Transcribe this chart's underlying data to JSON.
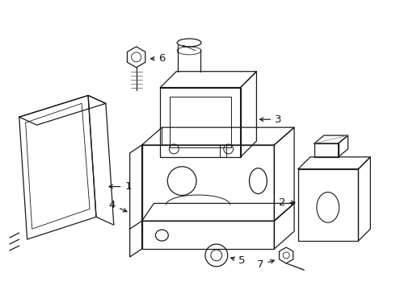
{
  "bg_color": "#ffffff",
  "line_color": "#1a1a1a",
  "lw": 0.9,
  "fig_w": 4.9,
  "fig_h": 3.6,
  "dpi": 100
}
